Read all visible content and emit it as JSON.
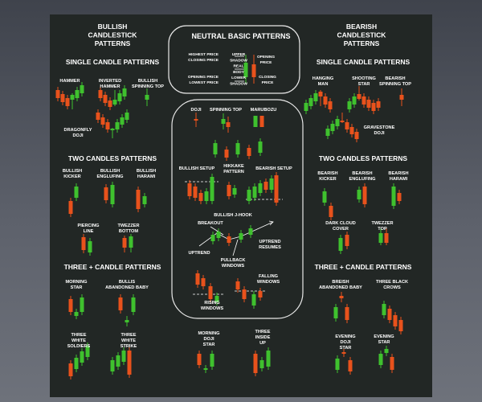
{
  "bullish": {
    "title": [
      "BULLISH",
      "CANDLESTICK",
      "PATTERNS"
    ],
    "single": {
      "heading": "SINGLE CANDLE PATTERNS",
      "patterns": [
        [
          "HAMMER"
        ],
        [
          "INVERTED",
          "HAMMER"
        ],
        [
          "BULLISH",
          "SPINNING TOP"
        ],
        [
          "DRAGONFLY",
          "DOJI"
        ]
      ]
    },
    "two": {
      "heading": "TWO CANDLES PATTERNS",
      "patterns": [
        [
          "BULLISH",
          "KICKER"
        ],
        [
          "BULLISH",
          "ENGLUFING"
        ],
        [
          "BULLISH",
          "HARAMI"
        ],
        [
          "PIERCING",
          "LINE"
        ],
        [
          "TWEZZER",
          "BOTTOM"
        ]
      ]
    },
    "three": {
      "heading": "THREE + CANDLE PATTERNS",
      "patterns": [
        [
          "MORNING",
          "STAR"
        ],
        [
          "BULLIS",
          "ABANDONED BABY"
        ],
        [
          "THREE",
          "WHITE",
          "SOLDIERS"
        ],
        [
          "THREE",
          "WHITE",
          "STRIKE"
        ]
      ]
    }
  },
  "neutral": {
    "title": "NEUTRAL BASIC PATTERNS",
    "anatomy": {
      "left": [
        "HIGHEST PRICE",
        "CLOSING PRICE",
        "OPENING PRICE",
        "LOWEST PRICE"
      ],
      "middle": [
        "UPPER",
        "SHADOW",
        "REAL",
        "BODY",
        "LOWER",
        "SHADOW"
      ],
      "right_open": [
        "OPENING",
        "PRICE"
      ],
      "right_close": [
        "CLOSING",
        "PRICE"
      ]
    },
    "patterns": [
      [
        "DOJI"
      ],
      [
        "SPINNING TOP"
      ],
      [
        "MARUBOZU"
      ],
      [
        "BULLISH SETUP"
      ],
      [
        "HIKKAKE",
        "PATTERN"
      ],
      [
        "BEARISH SETUP"
      ],
      [
        "BULLISH J-HOOK"
      ],
      [
        "BREAKOUT"
      ],
      [
        "UPTREND"
      ],
      [
        "UPTREND",
        "RESUMES"
      ],
      [
        "PULLBACK",
        "WINDOWS"
      ],
      [
        "FALLING",
        "WINDOWS"
      ],
      [
        "RISING",
        "WINDOWS"
      ],
      [
        "MORNING",
        "DOJI",
        "STAR"
      ],
      [
        "THREE",
        "INSIDE",
        "UP"
      ]
    ]
  },
  "bearish": {
    "title": [
      "BEARISH",
      "CANDLESTICK",
      "PATTERNS"
    ],
    "single": {
      "heading": "SINGLE CANDLE PATTERNS",
      "patterns": [
        [
          "HANGING",
          "MAN"
        ],
        [
          "SHOOTING",
          "STAR"
        ],
        [
          "BEARISH",
          "SPINNING TOP"
        ],
        [
          "GRAVESTONE",
          "DOJI"
        ]
      ]
    },
    "two": {
      "heading": "TWO CANDLES PATTERNS",
      "patterns": [
        [
          "BEARISH",
          "KICKER"
        ],
        [
          "BEARISH",
          "ENGLUFING"
        ],
        [
          "BEARISH",
          "HARAMI"
        ],
        [
          "DARK CLOUD",
          "COVER"
        ],
        [
          "TWEZZER",
          "TOP"
        ]
      ]
    },
    "three": {
      "heading": "THREE + CANDLE PATTERNS",
      "patterns": [
        [
          "BREISH",
          "ABANDONED BABY"
        ],
        [
          "THREE BLACK",
          "CROWS"
        ],
        [
          "EVENING",
          "DOJI",
          "STAR"
        ],
        [
          "EVENING",
          "STAR"
        ]
      ]
    }
  }
}
